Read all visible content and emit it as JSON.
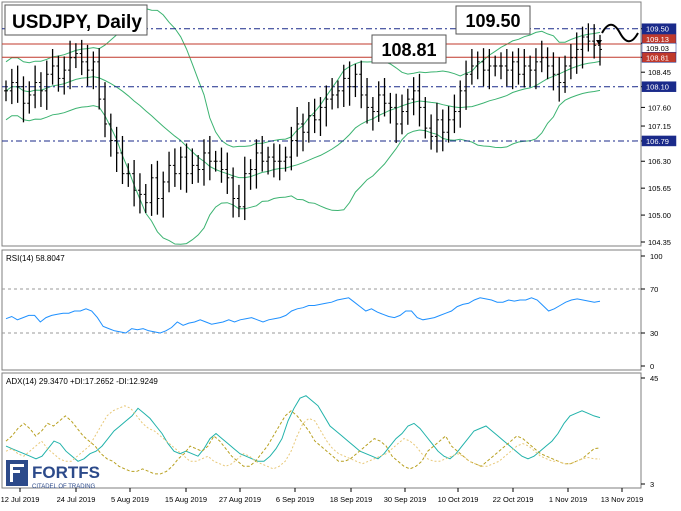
{
  "chart_data": [
    {
      "type": "candlestick",
      "title": "USDJPY, Daily",
      "ylim": [
        104.35,
        110.0
      ],
      "y_ticks": [
        "109.50",
        "109.15",
        "108.81",
        "108.45",
        "108.10",
        "107.60",
        "107.15",
        "106.79",
        "106.30",
        "105.65",
        "105.00",
        "104.35"
      ],
      "x_ticks": [
        "12 Jul 2019",
        "24 Jul 2019",
        "5 Aug 2019",
        "15 Aug 2019",
        "27 Aug 2019",
        "6 Sep 2019",
        "18 Sep 2019",
        "30 Sep 2019",
        "10 Oct 2019",
        "22 Oct 2019",
        "1 Nov 2019",
        "13 Nov 2019"
      ],
      "callouts": [
        "109.50",
        "108.81"
      ],
      "price_tags": {
        "level_top": "109.50",
        "current_1": "109.13",
        "current_2": "109.03",
        "level_mid": "108.81",
        "level_low": "108.10",
        "level_bottom": "106.79"
      },
      "levels": [
        109.5,
        108.81,
        108.1,
        106.79
      ],
      "closes": [
        108.0,
        108.2,
        108.1,
        107.7,
        107.9,
        108.2,
        108.0,
        108.4,
        108.6,
        108.3,
        108.5,
        108.8,
        108.9,
        108.7,
        108.5,
        108.7,
        107.8,
        107.2,
        106.8,
        106.5,
        106.0,
        106.0,
        105.6,
        105.5,
        105.3,
        105.9,
        105.4,
        105.8,
        106.2,
        106.0,
        106.4,
        106.0,
        106.2,
        106.1,
        106.5,
        106.3,
        106.3,
        106.1,
        105.9,
        105.4,
        105.2,
        106.0,
        106.1,
        106.5,
        106.3,
        106.4,
        106.3,
        106.3,
        106.4,
        106.8,
        107.2,
        107.0,
        107.4,
        107.3,
        107.6,
        107.8,
        107.9,
        108.0,
        108.3,
        108.1,
        108.4,
        107.9,
        107.6,
        107.5,
        107.9,
        107.7,
        107.6,
        107.2,
        107.5,
        107.8,
        108.0,
        107.6,
        107.1,
        106.9,
        107.3,
        107.0,
        107.3,
        107.5,
        108.0,
        108.4,
        108.6,
        108.7,
        108.5,
        108.6,
        108.6,
        108.6,
        108.5,
        108.7,
        108.4,
        108.6,
        108.5,
        108.7,
        108.8,
        108.6,
        108.4,
        108.2,
        108.6,
        108.8,
        109.0,
        109.3,
        109.2,
        109.1,
        109.0
      ]
    },
    {
      "type": "line",
      "title": "RSI(14) 58.8047",
      "ylim": [
        0,
        100
      ],
      "y_ticks": [
        "100",
        "70",
        "30",
        "0"
      ],
      "values": [
        43,
        45,
        42,
        44,
        46,
        46,
        40,
        44,
        46,
        47,
        48,
        48,
        50,
        50,
        52,
        50,
        44,
        36,
        34,
        32,
        31,
        30,
        34,
        33,
        34,
        32,
        31,
        30,
        32,
        35,
        40,
        37,
        39,
        40,
        42,
        40,
        38,
        39,
        40,
        42,
        40,
        42,
        43,
        44,
        42,
        40,
        42,
        43,
        44,
        46,
        50,
        52,
        53,
        55,
        55,
        56,
        57,
        58,
        60,
        61,
        62,
        58,
        54,
        50,
        52,
        49,
        47,
        45,
        44,
        46,
        50,
        50,
        44,
        42,
        43,
        44,
        46,
        48,
        50,
        54,
        56,
        57,
        60,
        62,
        61,
        60,
        58,
        58,
        60,
        59,
        60,
        60,
        62,
        60,
        55,
        50,
        52,
        55,
        58,
        60,
        61,
        60,
        59,
        58,
        58.8
      ]
    },
    {
      "type": "line",
      "title": "ADX(14) 29.3470 +DI:17.2652 -DI:12.9249",
      "ylim": [
        3,
        45
      ],
      "y_ticks": [
        "45",
        "3"
      ],
      "series": [
        {
          "name": "ADX(14)",
          "values": [
            18,
            17,
            16,
            15,
            14,
            13,
            14,
            17,
            20,
            19,
            16,
            14,
            12,
            13,
            15,
            16,
            18,
            21,
            24,
            26,
            28,
            30,
            33,
            31,
            29,
            26,
            23,
            19,
            16,
            15,
            16,
            15,
            14,
            17,
            21,
            23,
            21,
            19,
            17,
            15,
            14,
            13,
            12,
            12,
            14,
            17,
            21,
            28,
            33,
            37,
            38,
            36,
            34,
            30,
            26,
            24,
            22,
            20,
            18,
            16,
            15,
            14,
            13,
            15,
            18,
            21,
            23,
            26,
            27,
            25,
            22,
            19,
            16,
            14,
            13,
            15,
            18,
            21,
            24,
            25,
            26,
            24,
            22,
            20,
            18,
            16,
            14,
            13,
            14,
            16,
            18,
            20,
            23,
            27,
            30,
            31,
            32,
            31,
            30,
            29.3
          ]
        },
        {
          "name": "+DI",
          "values": [
            20,
            22,
            25,
            27,
            25,
            22,
            24,
            27,
            26,
            28,
            30,
            28,
            25,
            22,
            20,
            18,
            15,
            13,
            12,
            10,
            9,
            8,
            8,
            9,
            8,
            7,
            7,
            8,
            10,
            13,
            15,
            18,
            17,
            16,
            18,
            22,
            20,
            17,
            14,
            12,
            10,
            10,
            12,
            15,
            18,
            22,
            26,
            30,
            32,
            30,
            27,
            24,
            20,
            18,
            16,
            14,
            12,
            12,
            13,
            15,
            17,
            19,
            21,
            20,
            18,
            14,
            12,
            10,
            9,
            10,
            12,
            16,
            18,
            20,
            22,
            18,
            16,
            14,
            12,
            11,
            10,
            12,
            14,
            16,
            18,
            20,
            22,
            21,
            19,
            17,
            15,
            14,
            13,
            12,
            11,
            11,
            12,
            13,
            15,
            17,
            17.3
          ]
        },
        {
          "name": "-DI",
          "values": [
            16,
            17,
            15,
            14,
            16,
            18,
            20,
            17,
            15,
            13,
            12,
            12,
            14,
            16,
            18,
            22,
            26,
            30,
            32,
            33,
            34,
            33,
            30,
            27,
            25,
            24,
            22,
            20,
            18,
            16,
            14,
            12,
            12,
            13,
            14,
            12,
            11,
            10,
            11,
            13,
            15,
            14,
            12,
            11,
            10,
            9,
            10,
            12,
            16,
            22,
            27,
            29,
            28,
            24,
            20,
            17,
            15,
            14,
            13,
            12,
            11,
            12,
            13,
            14,
            15,
            17,
            19,
            21,
            20,
            18,
            15,
            13,
            12,
            12,
            13,
            14,
            15,
            14,
            12,
            11,
            10,
            10,
            11,
            12,
            14,
            16,
            18,
            19,
            18,
            16,
            14,
            13,
            12,
            12,
            11,
            11,
            12,
            13,
            13.5,
            13.0,
            12.9
          ]
        }
      ]
    }
  ],
  "brand": {
    "name": "FORTFS",
    "tagline": "CITADEL OF TRADING"
  }
}
